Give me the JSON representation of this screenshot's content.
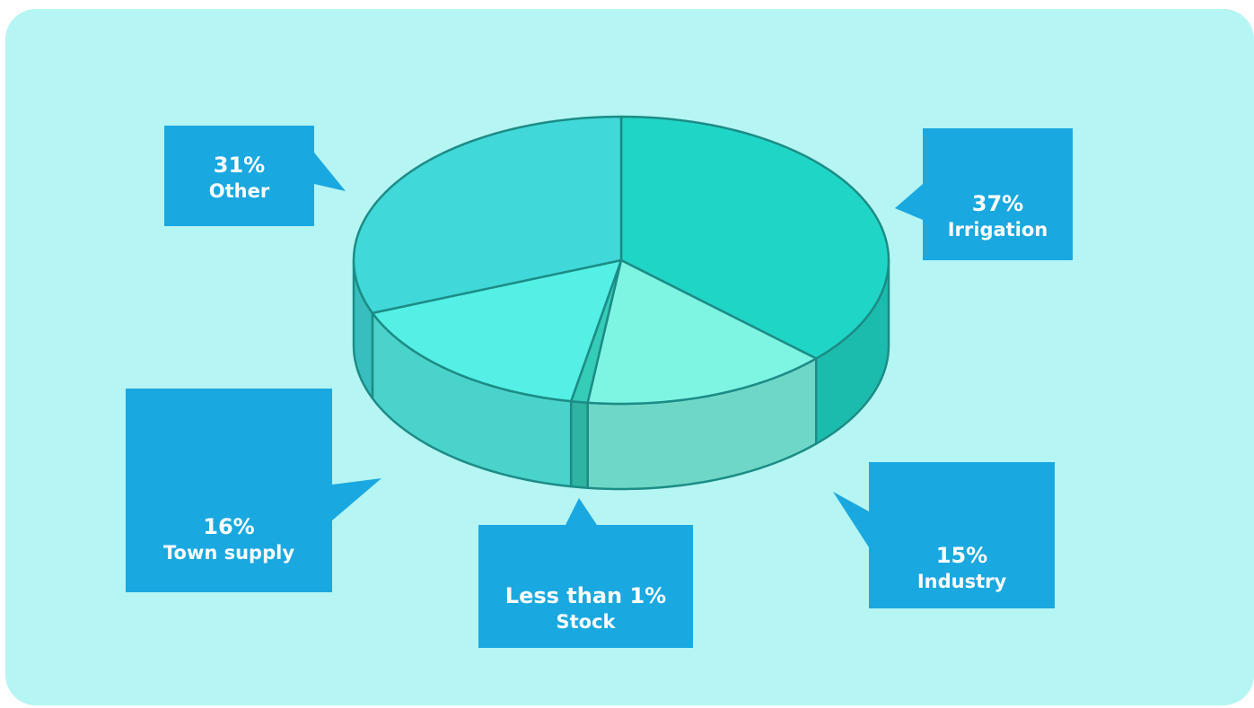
{
  "chart_data": {
    "type": "pie",
    "categories": [
      "Irrigation",
      "Industry",
      "Stock",
      "Town supply",
      "Other"
    ],
    "values": [
      37,
      15,
      1,
      16,
      31
    ],
    "value_labels": [
      "37%",
      "15%",
      "Less than 1%",
      "16%",
      "31%"
    ],
    "colors": [
      "#1fd6c6",
      "#7ef4e2",
      "#35cdb8",
      "#54f0e6",
      "#40d8d8"
    ]
  }
}
